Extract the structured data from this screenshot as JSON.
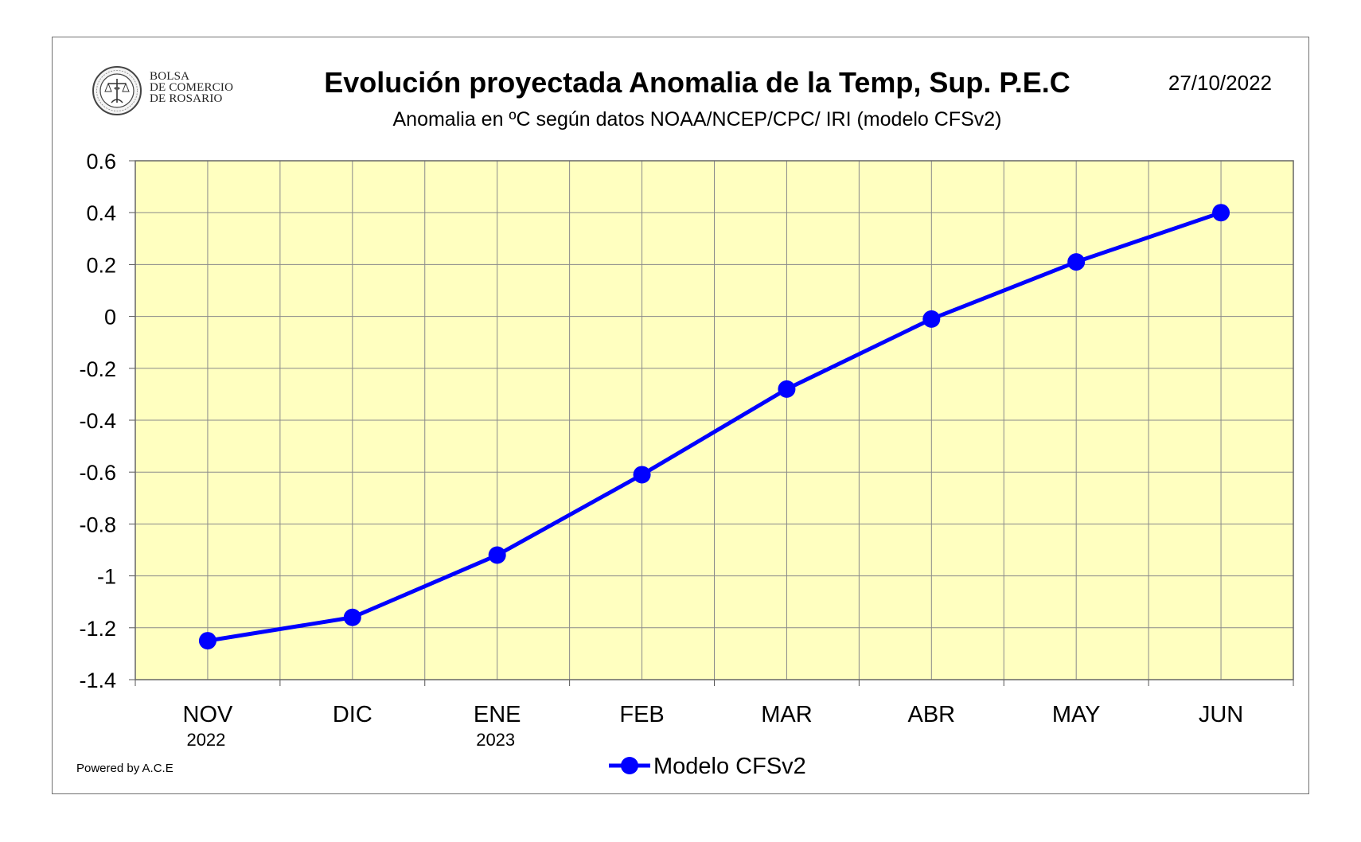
{
  "header": {
    "title": "Evolución proyectada Anomalia de la Temp, Sup.  P.E.C",
    "subtitle": "Anomalia en ºC según datos NOAA/NCEP/CPC/ IRI (modelo CFSv2)",
    "date": "27/10/2022",
    "logo_lines": [
      "BOLSA",
      "DE COMERCIO",
      "DE ROSARIO"
    ],
    "logo_seal_text": "BOLSA DE COMERCIO DE ROSARIO"
  },
  "footer": {
    "powered_by": "Powered by A.C.E"
  },
  "colors": {
    "plot_background": "#FFFFC0",
    "grid": "#8a8a8a",
    "series": "#0000FF"
  },
  "chart_data": {
    "type": "line",
    "title": "Evolución proyectada Anomalia de la Temp, Sup.  P.E.C",
    "subtitle": "Anomalia en ºC según datos NOAA/NCEP/CPC/ IRI (modelo CFSv2)",
    "categories": [
      "NOV",
      "DIC",
      "ENE",
      "FEB",
      "MAR",
      "ABR",
      "MAY",
      "JUN"
    ],
    "category_sublabels": [
      "2022",
      "",
      "2023",
      "",
      "",
      "",
      "",
      ""
    ],
    "series": [
      {
        "name": "Modelo CFSv2",
        "values": [
          -1.25,
          -1.16,
          -0.92,
          -0.61,
          -0.28,
          -0.01,
          0.21,
          0.4
        ]
      }
    ],
    "ylim": [
      -1.4,
      0.6
    ],
    "yticks": [
      0.6,
      0.4,
      0.2,
      0,
      -0.2,
      -0.4,
      -0.6,
      -0.8,
      -1,
      -1.2,
      -1.4
    ],
    "ytick_labels": [
      "0.6",
      "0.4",
      "0.2",
      "0",
      "-0.2",
      "-0.4",
      "-0.6",
      "-0.8",
      "-1",
      "-1.2",
      "-1.4"
    ],
    "xlabel": "",
    "ylabel": "",
    "grid": true,
    "legend": "bottom-center"
  }
}
